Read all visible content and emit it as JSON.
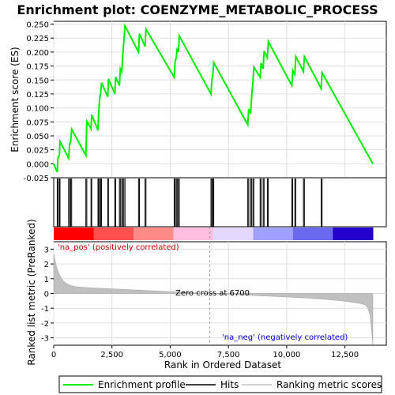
{
  "chart_data": {
    "type": "line",
    "title": "Enrichment plot: COENZYME_METABOLIC_PROCESS",
    "xlabel": "Rank in Ordered Dataset",
    "es_panel": {
      "ylabel": "Enrichment score (ES)",
      "ylim": [
        -0.025,
        0.255
      ],
      "yticks": [
        "-0.025",
        "0.000",
        "0.025",
        "0.050",
        "0.075",
        "0.100",
        "0.125",
        "0.150",
        "0.175",
        "0.200",
        "0.225",
        "0.250"
      ],
      "series": [
        {
          "name": "Enrichment profile",
          "color": "#00ee00",
          "x": [
            0,
            150,
            180,
            240,
            270,
            640,
            680,
            730,
            770,
            1380,
            1420,
            1600,
            1630,
            1900,
            1930,
            1980,
            2010,
            2050,
            2320,
            2350,
            2620,
            2660,
            2820,
            2860,
            2920,
            2960,
            3010,
            3060,
            3640,
            3680,
            3920,
            3960,
            5170,
            5210,
            5260,
            5300,
            5350,
            5390,
            6750,
            6790,
            6830,
            6870,
            8330,
            8370,
            8450,
            8490,
            8550,
            8590,
            8860,
            8900,
            8990,
            9030,
            9170,
            9210,
            10220,
            10260,
            10350,
            10390,
            10720,
            10760,
            11480,
            11520,
            13700
          ],
          "y": [
            0.0,
            -0.015,
            0.01,
            0.015,
            0.04,
            0.01,
            0.035,
            0.04,
            0.062,
            0.015,
            0.076,
            0.063,
            0.088,
            0.06,
            0.092,
            0.12,
            0.125,
            0.145,
            0.12,
            0.152,
            0.125,
            0.155,
            0.14,
            0.17,
            0.165,
            0.192,
            0.22,
            0.247,
            0.2,
            0.233,
            0.21,
            0.241,
            0.155,
            0.183,
            0.19,
            0.207,
            0.2,
            0.229,
            0.125,
            0.15,
            0.16,
            0.181,
            0.07,
            0.098,
            0.09,
            0.118,
            0.145,
            0.173,
            0.155,
            0.18,
            0.17,
            0.202,
            0.19,
            0.219,
            0.14,
            0.167,
            0.16,
            0.192,
            0.165,
            0.192,
            0.135,
            0.163,
            0.0
          ]
        }
      ]
    },
    "hits_panel": {
      "legend_name": "Hits",
      "positions": [
        150,
        180,
        240,
        270,
        640,
        680,
        730,
        770,
        1380,
        1420,
        1600,
        1630,
        1900,
        1930,
        1980,
        2010,
        2050,
        2320,
        2350,
        2620,
        2660,
        2820,
        2860,
        2920,
        2960,
        3010,
        3060,
        3640,
        3680,
        3920,
        3960,
        5170,
        5210,
        5260,
        5300,
        5350,
        5390,
        6750,
        6790,
        6830,
        6870,
        8330,
        8370,
        8450,
        8490,
        8550,
        8590,
        8860,
        8900,
        8990,
        9030,
        9170,
        9210,
        10220,
        10260,
        10350,
        10390,
        10720,
        10760,
        11480,
        11520
      ],
      "bar_colors": [
        "#ff0000",
        "#ff4f4f",
        "#ff8a8a",
        "#ffbfe0",
        "#e6d9ff",
        "#9f9fff",
        "#6a6af0",
        "#2400cc"
      ]
    },
    "metric_panel": {
      "ylabel": "Ranked list metric (PreRanked)",
      "ylim": [
        -3.5,
        3.5
      ],
      "yticks": [
        "-3",
        "-2",
        "-1",
        "0",
        "1",
        "2",
        "3"
      ],
      "legend_name": "Ranking metric scores",
      "fill_color": "#c0c0c0",
      "zero_cross_label": "Zero cross at 6700",
      "zero_cross": 6700,
      "pos_label": "'na_pos' (positively correlated)",
      "neg_label": "'na_neg' (negatively correlated)",
      "pos_color": "#cc0000",
      "neg_color": "#0000cc"
    },
    "xlim": [
      0,
      13700
    ],
    "xticks": [
      "0",
      "2,500",
      "5,000",
      "7,500",
      "10,000",
      "12,500"
    ],
    "grid": true,
    "legend_placement": "bottom",
    "legend": [
      "Enrichment profile",
      "Hits",
      "Ranking metric scores"
    ]
  }
}
